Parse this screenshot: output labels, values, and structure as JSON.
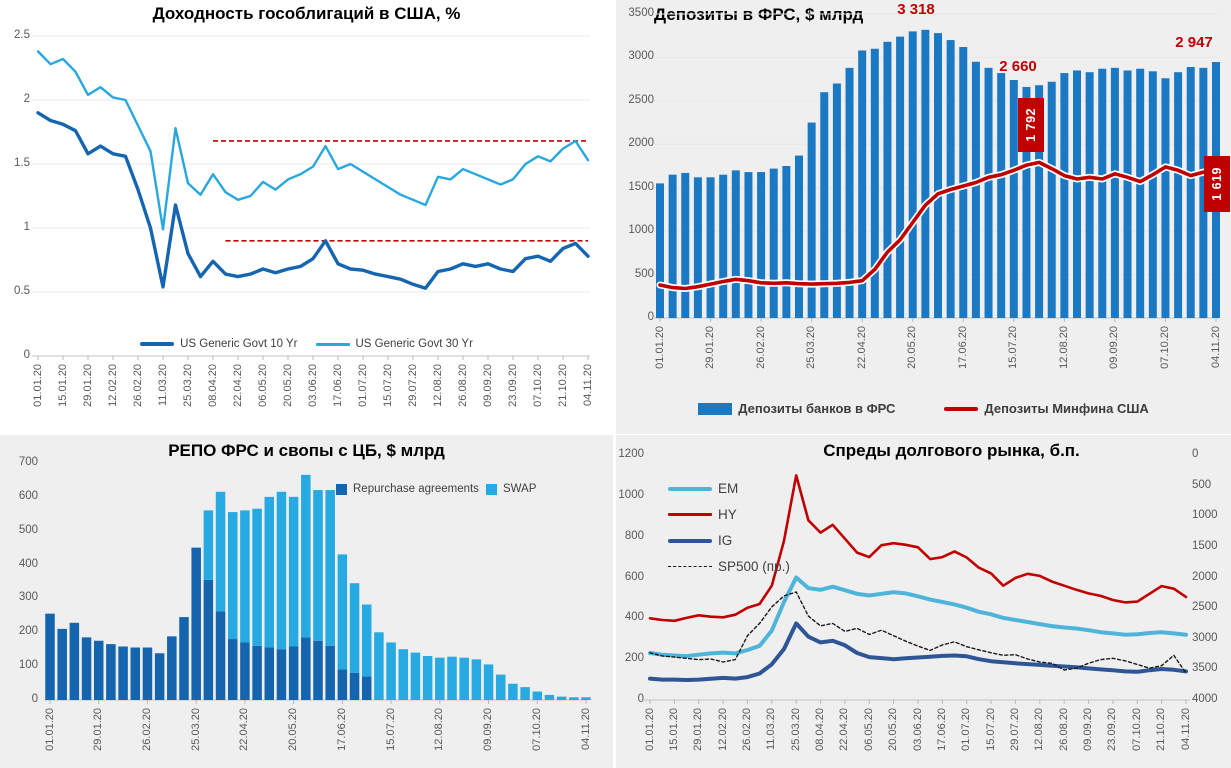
{
  "page": {
    "background": "#efefef",
    "panel_tl_background": "#ffffff"
  },
  "colors": {
    "accent_red": "#c00000",
    "bar_blue": "#1b79c4",
    "line_blue_dark": "#1565b0",
    "line_blue_light": "#29a8e0",
    "repo_blue": "#1464ae",
    "swap_blue": "#27a9e1",
    "em_blue": "#4fb4da",
    "ig_navy": "#2e5596",
    "axis_text": "#595959"
  },
  "chart_data": [
    {
      "type": "line",
      "title": "Доходность гособлигаций в США, %",
      "ylim": [
        0,
        2.5
      ],
      "y_ticks": [
        "0",
        "0.5",
        "1",
        "1.5",
        "2",
        "2.5"
      ],
      "grid": true,
      "legend_position": "bottom",
      "x_labels": [
        "01.01.20",
        "15.01.20",
        "29.01.20",
        "12.02.20",
        "26.02.20",
        "11.03.20",
        "25.03.20",
        "08.04.20",
        "22.04.20",
        "06.05.20",
        "20.05.20",
        "03.06.20",
        "17.06.20",
        "01.07.20",
        "15.07.20",
        "29.07.20",
        "12.08.20",
        "26.08.20",
        "09.09.20",
        "23.09.20",
        "07.10.20",
        "21.10.20",
        "04.11.20"
      ],
      "series": [
        {
          "name": "US Generic Govt 10 Yr",
          "color": "#1565b0",
          "width": 3.4,
          "values": [
            1.9,
            1.84,
            1.81,
            1.76,
            1.58,
            1.64,
            1.58,
            1.56,
            1.3,
            1.0,
            0.54,
            1.18,
            0.8,
            0.62,
            0.74,
            0.64,
            0.62,
            0.64,
            0.68,
            0.65,
            0.68,
            0.7,
            0.76,
            0.9,
            0.72,
            0.68,
            0.67,
            0.64,
            0.62,
            0.6,
            0.56,
            0.53,
            0.66,
            0.68,
            0.72,
            0.7,
            0.72,
            0.68,
            0.66,
            0.76,
            0.78,
            0.74,
            0.84,
            0.88,
            0.78
          ]
        },
        {
          "name": "US Generic Govt 30 Yr",
          "color": "#29a8e0",
          "width": 2.4,
          "values": [
            2.38,
            2.28,
            2.32,
            2.22,
            2.04,
            2.1,
            2.02,
            2.0,
            1.8,
            1.6,
            0.99,
            1.78,
            1.35,
            1.26,
            1.42,
            1.28,
            1.22,
            1.25,
            1.36,
            1.3,
            1.38,
            1.42,
            1.48,
            1.64,
            1.46,
            1.5,
            1.44,
            1.38,
            1.32,
            1.26,
            1.22,
            1.18,
            1.4,
            1.38,
            1.46,
            1.42,
            1.38,
            1.34,
            1.38,
            1.5,
            1.56,
            1.52,
            1.62,
            1.68,
            1.53
          ]
        }
      ],
      "ref_lines": [
        {
          "value": 1.68,
          "from_week": 14
        },
        {
          "value": 0.9,
          "from_week": 15
        }
      ],
      "ref_color": "#c00000"
    },
    {
      "type": "bar+line",
      "title": "Депозиты в ФРС, $ млрд",
      "ylim": [
        0,
        3500
      ],
      "y_ticks": [
        "0",
        "500",
        "1000",
        "1500",
        "2000",
        "2500",
        "3000",
        "3500"
      ],
      "legend_position": "bottom",
      "x_labels": [
        "01.01.20",
        "29.01.20",
        "26.02.20",
        "25.03.20",
        "22.04.20",
        "20.05.20",
        "17.06.20",
        "15.07.20",
        "12.08.20",
        "09.09.20",
        "07.10.20",
        "04.11.20"
      ],
      "bars": {
        "name": "Депозиты банков в ФРС",
        "color": "#1b79c4",
        "values": [
          1550,
          1650,
          1670,
          1620,
          1620,
          1650,
          1700,
          1680,
          1680,
          1720,
          1750,
          1870,
          2250,
          2600,
          2700,
          2880,
          3080,
          3100,
          3180,
          3240,
          3300,
          3318,
          3280,
          3200,
          3120,
          2950,
          2880,
          2820,
          2740,
          2660,
          2680,
          2720,
          2820,
          2850,
          2830,
          2870,
          2880,
          2850,
          2870,
          2840,
          2760,
          2830,
          2890,
          2880,
          2947
        ]
      },
      "line": {
        "name": "Депозиты Минфина США",
        "color": "#c00000",
        "values": [
          380,
          350,
          340,
          360,
          390,
          420,
          445,
          430,
          405,
          400,
          405,
          395,
          390,
          395,
          400,
          410,
          430,
          560,
          760,
          900,
          1100,
          1300,
          1430,
          1480,
          1520,
          1560,
          1620,
          1650,
          1700,
          1760,
          1792,
          1720,
          1640,
          1600,
          1620,
          1600,
          1660,
          1620,
          1570,
          1650,
          1740,
          1700,
          1640,
          1680,
          1619
        ]
      },
      "annotations": [
        {
          "text": "3 318",
          "style": "text"
        },
        {
          "text": "2 660",
          "style": "text"
        },
        {
          "text": "2 947",
          "style": "text"
        },
        {
          "text": "1 792",
          "style": "box"
        },
        {
          "text": "1 619",
          "style": "box"
        }
      ]
    },
    {
      "type": "stacked-bar",
      "title": "РЕПО ФРС и свопы с ЦБ, $ млрд",
      "ylim": [
        0,
        700
      ],
      "y_ticks": [
        "0",
        "100",
        "200",
        "300",
        "400",
        "500",
        "600",
        "700"
      ],
      "legend_position": "top-right",
      "x_labels": [
        "01.01.20",
        "29.01.20",
        "26.02.20",
        "25.03.20",
        "22.04.20",
        "20.05.20",
        "17.06.20",
        "15.07.20",
        "12.08.20",
        "09.09.20",
        "07.10.20",
        "04.11.20"
      ],
      "series": [
        {
          "name": "Repurchase agreements",
          "color": "#1464ae",
          "values": [
            255,
            210,
            228,
            185,
            175,
            165,
            158,
            155,
            155,
            138,
            188,
            245,
            450,
            355,
            262,
            180,
            170,
            160,
            155,
            150,
            158,
            185,
            175,
            160,
            90,
            80,
            70,
            0,
            0,
            0,
            0,
            0,
            0,
            0,
            0,
            0,
            0,
            0,
            0,
            0,
            0,
            0,
            0,
            0,
            0
          ]
        },
        {
          "name": "SWAP",
          "color": "#27a9e1",
          "values": [
            0,
            0,
            0,
            0,
            0,
            0,
            0,
            0,
            0,
            0,
            0,
            0,
            0,
            205,
            353,
            375,
            390,
            405,
            445,
            465,
            442,
            480,
            445,
            460,
            340,
            265,
            212,
            200,
            170,
            150,
            140,
            130,
            125,
            128,
            125,
            120,
            105,
            75,
            48,
            38,
            25,
            15,
            10,
            8,
            8
          ]
        }
      ]
    },
    {
      "type": "multi-line-dual-axis",
      "title": "Спреды долгового рынка, б.п.",
      "ylim_left": [
        0,
        1200
      ],
      "ylim_right": [
        0,
        4000
      ],
      "right_axis_inverted": true,
      "left_ticks": [
        "0",
        "200",
        "400",
        "600",
        "800",
        "1000",
        "1200"
      ],
      "right_ticks": [
        "0",
        "500",
        "1000",
        "1500",
        "2000",
        "2500",
        "3000",
        "3500",
        "4000"
      ],
      "legend_position": "top-left",
      "x_labels": [
        "01.01.20",
        "15.01.20",
        "29.01.20",
        "12.02.20",
        "26.02.20",
        "11.03.20",
        "25.03.20",
        "08.04.20",
        "22.04.20",
        "06.05.20",
        "20.05.20",
        "03.06.20",
        "17.06.20",
        "01.07.20",
        "15.07.20",
        "29.07.20",
        "12.08.20",
        "26.08.20",
        "09.09.20",
        "23.09.20",
        "07.10.20",
        "21.10.20",
        "04.11.20"
      ],
      "series": [
        {
          "name": "EM",
          "color": "#4fb4da",
          "width": 4,
          "values": [
            230,
            222,
            218,
            215,
            222,
            228,
            232,
            228,
            245,
            265,
            340,
            480,
            600,
            548,
            540,
            555,
            538,
            520,
            512,
            520,
            528,
            522,
            508,
            492,
            480,
            468,
            452,
            432,
            420,
            402,
            392,
            382,
            372,
            362,
            355,
            350,
            342,
            332,
            326,
            320,
            322,
            328,
            332,
            326,
            320
          ]
        },
        {
          "name": "HY",
          "color": "#c00000",
          "width": 2.6,
          "values": [
            400,
            392,
            388,
            402,
            415,
            408,
            405,
            418,
            452,
            470,
            560,
            780,
            1100,
            880,
            820,
            858,
            790,
            722,
            700,
            758,
            768,
            760,
            748,
            690,
            700,
            728,
            698,
            648,
            620,
            560,
            598,
            618,
            608,
            580,
            560,
            540,
            522,
            510,
            490,
            478,
            482,
            520,
            558,
            545,
            505
          ]
        },
        {
          "name": "IG",
          "color": "#2e5596",
          "width": 4,
          "values": [
            105,
            100,
            100,
            98,
            100,
            104,
            108,
            105,
            112,
            130,
            175,
            250,
            375,
            310,
            282,
            290,
            268,
            230,
            210,
            205,
            200,
            204,
            208,
            212,
            216,
            218,
            214,
            200,
            190,
            185,
            180,
            176,
            172,
            168,
            164,
            160,
            155,
            150,
            146,
            140,
            138,
            146,
            152,
            148,
            140
          ]
        }
      ],
      "right_series": {
        "name": "SP500 (пр.)",
        "color": "#1a1a1a",
        "dashed": true,
        "values": [
          3230,
          3280,
          3300,
          3320,
          3340,
          3330,
          3380,
          3340,
          2950,
          2750,
          2480,
          2300,
          2237,
          2630,
          2790,
          2750,
          2880,
          2830,
          2930,
          2860,
          2950,
          3040,
          3120,
          3190,
          3100,
          3050,
          3130,
          3180,
          3230,
          3270,
          3260,
          3330,
          3380,
          3400,
          3510,
          3480,
          3400,
          3340,
          3320,
          3360,
          3420,
          3480,
          3440,
          3270,
          3560
        ]
      }
    }
  ]
}
